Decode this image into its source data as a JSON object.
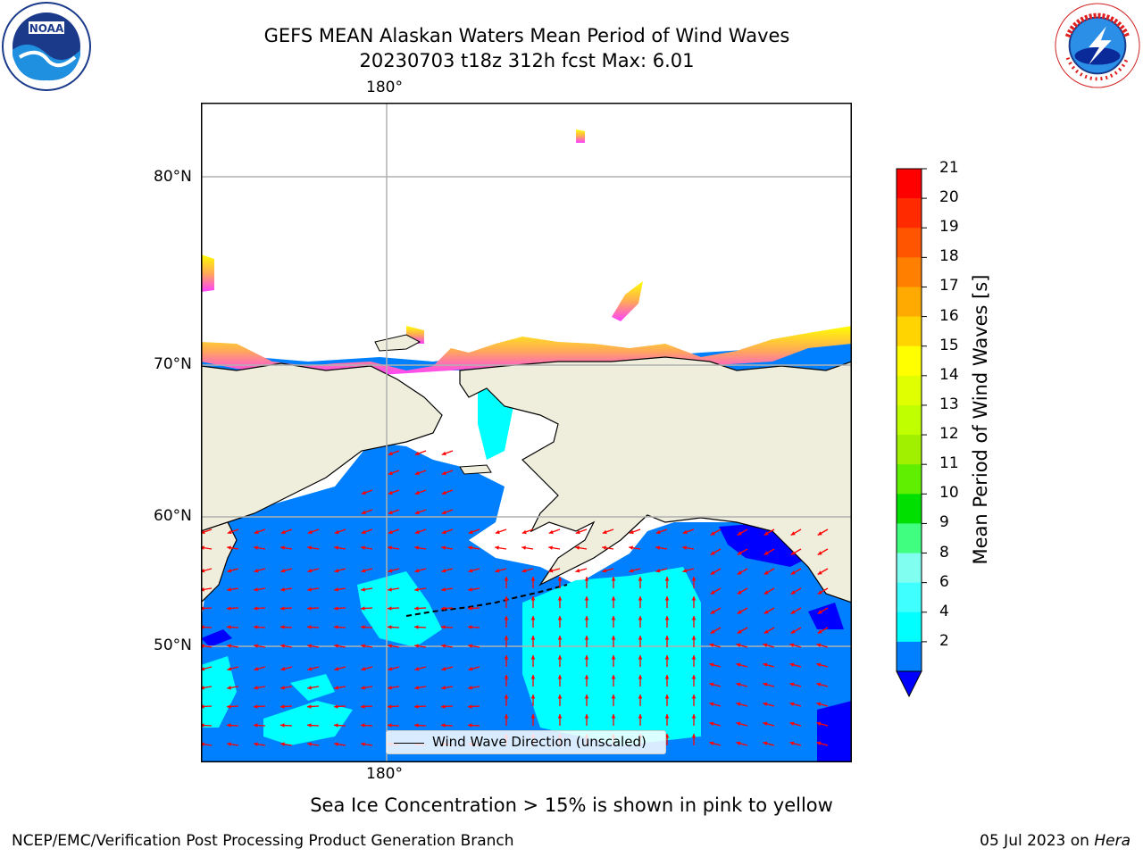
{
  "header": {
    "title_line1": "GEFS MEAN Alaskan Waters Mean Period of Wind Waves",
    "title_line2": "20230703 t18z 312h fcst   Max: 6.01"
  },
  "logos": {
    "left": "noaa-logo",
    "right": "nws-logo"
  },
  "map": {
    "top_lon_label": "180°",
    "bottom_lon_label": "180°",
    "lat_labels": [
      "80°N",
      "70°N",
      "60°N",
      "50°N"
    ],
    "colors": {
      "land": "#efeedd",
      "ocean_2_4": "#0080ff",
      "ocean_4_6": "#00ffff",
      "ocean_6_8": "#40ffff",
      "ocean_below_2": "#0000ff",
      "grid": "#b0b0b0",
      "arrow": "#ff0000"
    },
    "legend": {
      "label": "Wind Wave Direction (unscaled)"
    }
  },
  "colorbar": {
    "title": "Mean Period of Wind Waves [s]",
    "ticks": [
      "21",
      "20",
      "19",
      "18",
      "17",
      "16",
      "15",
      "14",
      "13",
      "12",
      "11",
      "10",
      "9",
      "8",
      "6",
      "4",
      "2"
    ],
    "colors": [
      "#ff0000",
      "#ff2a00",
      "#ff5500",
      "#ff7f00",
      "#ffaa00",
      "#ffd400",
      "#ffff00",
      "#e0ff00",
      "#c0ff00",
      "#a0f000",
      "#60ef00",
      "#00e000",
      "#40ff80",
      "#80fff0",
      "#40ffff",
      "#00ffff",
      "#0080ff"
    ],
    "under_color": "#0000ff"
  },
  "notes": {
    "sea_ice": "Sea Ice Concentration > 15% is shown in pink to yellow"
  },
  "footer": {
    "left": "NCEP/EMC/Verification Post Processing Product Generation Branch",
    "right_date": "05 Jul 2023 on ",
    "right_host": "Hera"
  }
}
